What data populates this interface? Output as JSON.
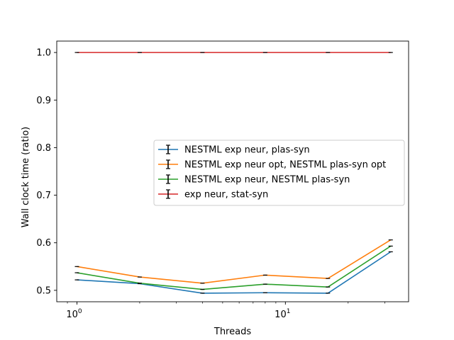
{
  "chart_data": {
    "type": "line",
    "xscale": "log",
    "xlabel": "Threads",
    "ylabel": "Wall clock time (ratio)",
    "xlim": [
      0.8,
      39
    ],
    "ylim": [
      0.476,
      1.024
    ],
    "x": [
      1,
      2,
      4,
      8,
      16,
      32
    ],
    "xticks": [
      {
        "value": 1,
        "base": "10",
        "exp": "0"
      },
      {
        "value": 10,
        "base": "10",
        "exp": "1"
      }
    ],
    "yticks": [
      "0.5",
      "0.6",
      "0.7",
      "0.8",
      "0.9",
      "1.0"
    ],
    "legend_position": "center-right",
    "series": [
      {
        "name": "NESTML exp neur, plas-syn",
        "color": "#1f77b4",
        "values": [
          0.522,
          0.514,
          0.494,
          0.495,
          0.494,
          0.581
        ]
      },
      {
        "name": "NESTML exp neur opt, NESTML plas-syn opt",
        "color": "#ff7f0e",
        "values": [
          0.55,
          0.528,
          0.515,
          0.532,
          0.525,
          0.606
        ]
      },
      {
        "name": "NESTML exp neur, NESTML plas-syn",
        "color": "#2ca02c",
        "values": [
          0.537,
          0.515,
          0.502,
          0.513,
          0.507,
          0.593
        ]
      },
      {
        "name": "exp neur, stat-syn",
        "color": "#d62728",
        "values": [
          1.0,
          1.0,
          1.0,
          1.0,
          1.0,
          1.0
        ]
      }
    ]
  }
}
